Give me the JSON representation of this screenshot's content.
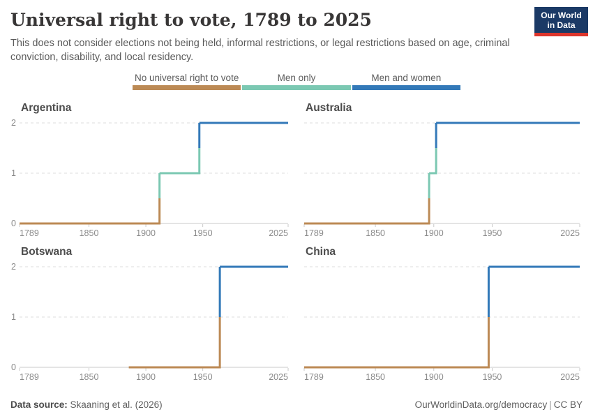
{
  "header": {
    "title": "Universal right to vote, 1789 to 2025",
    "subtitle": "This does not consider elections not being held, informal restrictions, or legal restrictions based on age, criminal conviction, disability, and local residency.",
    "logo": {
      "line1": "Our World",
      "line2": "in Data"
    }
  },
  "colors": {
    "no_universal": "#BC8A55",
    "men_only": "#7BC8B2",
    "men_and_women": "#3379B8",
    "logo_bg": "#1B3A66",
    "logo_bar": "#DC352C",
    "axis": "#C9C9C9",
    "grid": "#DDDDDD",
    "tick_label": "#8A8A8A"
  },
  "legend": {
    "items": [
      {
        "label": "No universal right to vote",
        "color_key": "no_universal"
      },
      {
        "label": "Men only",
        "color_key": "men_only"
      },
      {
        "label": "Men and women",
        "color_key": "men_and_women"
      }
    ]
  },
  "chart_data": [
    {
      "type": "line",
      "title": "Argentina",
      "x_domain": [
        1789,
        2025
      ],
      "y_domain": [
        0,
        2
      ],
      "x_ticks": [
        1789,
        1850,
        1900,
        1950,
        2025
      ],
      "y_ticks": [
        0,
        1,
        2
      ],
      "show_y_labels": true,
      "segments": [
        {
          "value": 0,
          "from": 1789,
          "to": 1912,
          "category": "no_universal",
          "label": "No universal right to vote"
        },
        {
          "value": 1,
          "from": 1912,
          "to": 1947,
          "category": "men_only",
          "label": "Men only"
        },
        {
          "value": 2,
          "from": 1947,
          "to": 2025,
          "category": "men_and_women",
          "label": "Men and women"
        }
      ]
    },
    {
      "type": "line",
      "title": "Australia",
      "x_domain": [
        1789,
        2025
      ],
      "y_domain": [
        0,
        2
      ],
      "x_ticks": [
        1789,
        1850,
        1900,
        1950,
        2025
      ],
      "y_ticks": [
        0,
        1,
        2
      ],
      "show_y_labels": false,
      "segments": [
        {
          "value": 0,
          "from": 1789,
          "to": 1896,
          "category": "no_universal",
          "label": "No universal right to vote"
        },
        {
          "value": 1,
          "from": 1896,
          "to": 1902,
          "category": "men_only",
          "label": "Men only"
        },
        {
          "value": 2,
          "from": 1902,
          "to": 2025,
          "category": "men_and_women",
          "label": "Men and women"
        }
      ]
    },
    {
      "type": "line",
      "title": "Botswana",
      "x_domain": [
        1789,
        2025
      ],
      "y_domain": [
        0,
        2
      ],
      "x_ticks": [
        1789,
        1850,
        1900,
        1950,
        2025
      ],
      "y_ticks": [
        0,
        1,
        2
      ],
      "show_y_labels": true,
      "segments": [
        {
          "value": 0,
          "from": 1885,
          "to": 1965,
          "category": "no_universal",
          "label": "No universal right to vote"
        },
        {
          "value": 2,
          "from": 1965,
          "to": 2025,
          "category": "men_and_women",
          "label": "Men and women"
        }
      ]
    },
    {
      "type": "line",
      "title": "China",
      "x_domain": [
        1789,
        2025
      ],
      "y_domain": [
        0,
        2
      ],
      "x_ticks": [
        1789,
        1850,
        1900,
        1950,
        2025
      ],
      "y_ticks": [
        0,
        1,
        2
      ],
      "show_y_labels": false,
      "segments": [
        {
          "value": 0,
          "from": 1789,
          "to": 1947,
          "category": "no_universal",
          "label": "No universal right to vote"
        },
        {
          "value": 2,
          "from": 1947,
          "to": 2025,
          "category": "men_and_women",
          "label": "Men and women"
        }
      ]
    }
  ],
  "footer": {
    "source_label": "Data source:",
    "source_value": "Skaaning et al. (2026)",
    "url": "OurWorldinData.org/democracy",
    "separator": "|",
    "license": "CC BY"
  }
}
